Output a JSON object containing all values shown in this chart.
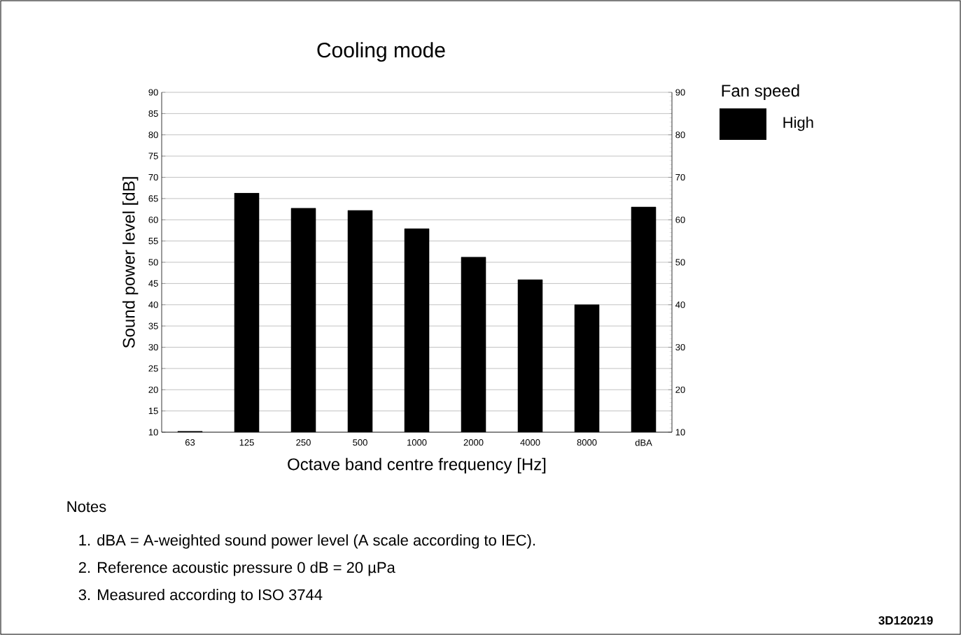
{
  "chart_data": {
    "type": "bar",
    "title": "Cooling mode",
    "xlabel": "Octave band centre frequency [Hz]",
    "ylabel": "Sound power level [dB]",
    "legend_title": "Fan speed",
    "categories": [
      "63",
      "125",
      "250",
      "500",
      "1000",
      "2000",
      "4000",
      "8000",
      "dBA"
    ],
    "series": [
      {
        "name": "High",
        "color": "#000000",
        "values": [
          10.2,
          66.3,
          62.7,
          62.2,
          57.9,
          51.2,
          45.9,
          40.0,
          63.0
        ]
      }
    ],
    "ylim": [
      10,
      90
    ],
    "yticks": [
      10,
      15,
      20,
      25,
      30,
      35,
      40,
      45,
      50,
      55,
      60,
      65,
      70,
      75,
      80,
      85,
      90
    ],
    "y2lim": [
      10,
      90
    ],
    "y2ticks": [
      10,
      20,
      30,
      40,
      50,
      60,
      70,
      80,
      90
    ],
    "grid": "y",
    "legend": "top right",
    "annotations": [
      "Notes",
      "1. dBA = A-weighted sound power level (A scale according to IEC).",
      "2. Reference acoustic pressure 0 dB = 20 µPa",
      "3. Measured according to ISO 3744",
      "3D120219"
    ]
  }
}
